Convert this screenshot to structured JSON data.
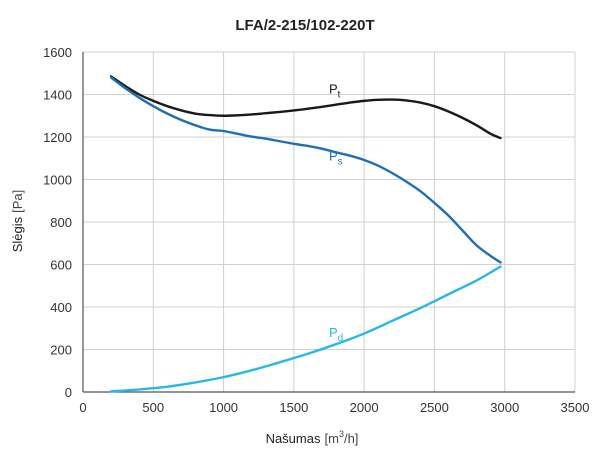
{
  "chart_data": {
    "type": "line",
    "title": "LFA/2-215/102-220T",
    "xlabel": "Našumas",
    "xlabel_unit_pre": "[m",
    "xlabel_unit_sup": "3",
    "xlabel_unit_post": "/h]",
    "ylabel": "Slėgis",
    "ylabel_unit": "[Pa]",
    "xlim": [
      0,
      3500
    ],
    "ylim": [
      0,
      1600
    ],
    "xticks": [
      0,
      500,
      1000,
      1500,
      2000,
      2500,
      3000,
      3500
    ],
    "yticks": [
      0,
      200,
      400,
      600,
      800,
      1000,
      1200,
      1400,
      1600
    ],
    "grid": true,
    "series": [
      {
        "name": "Pt",
        "label_main": "P",
        "label_sub": "t",
        "color": "#1a1a1a",
        "x": [
          200,
          300,
          400,
          500,
          600,
          700,
          800,
          900,
          1000,
          1100,
          1200,
          1300,
          1400,
          1500,
          1600,
          1700,
          1800,
          1900,
          2000,
          2100,
          2200,
          2300,
          2400,
          2500,
          2600,
          2700,
          2800,
          2900,
          2970
        ],
        "values": [
          1485,
          1440,
          1400,
          1370,
          1345,
          1325,
          1310,
          1303,
          1300,
          1302,
          1306,
          1312,
          1318,
          1325,
          1333,
          1342,
          1352,
          1362,
          1370,
          1375,
          1376,
          1372,
          1362,
          1345,
          1320,
          1290,
          1255,
          1215,
          1195
        ]
      },
      {
        "name": "Ps",
        "label_main": "P",
        "label_sub": "s",
        "color": "#1f6fb5",
        "x": [
          200,
          300,
          400,
          500,
          600,
          700,
          800,
          900,
          1000,
          1100,
          1200,
          1300,
          1400,
          1500,
          1600,
          1700,
          1800,
          1900,
          2000,
          2100,
          2200,
          2300,
          2400,
          2500,
          2600,
          2700,
          2800,
          2900,
          2970
        ],
        "values": [
          1480,
          1430,
          1385,
          1345,
          1310,
          1280,
          1255,
          1235,
          1228,
          1215,
          1202,
          1192,
          1180,
          1168,
          1158,
          1145,
          1128,
          1112,
          1092,
          1065,
          1030,
          990,
          945,
          890,
          830,
          760,
          690,
          640,
          610
        ]
      },
      {
        "name": "Pd",
        "label_main": "P",
        "label_sub": "d",
        "color": "#29b6e8",
        "x": [
          200,
          400,
          600,
          800,
          1000,
          1200,
          1400,
          1600,
          1800,
          2000,
          2200,
          2400,
          2600,
          2800,
          2970
        ],
        "values": [
          3,
          12,
          25,
          45,
          70,
          102,
          140,
          180,
          225,
          275,
          335,
          395,
          460,
          525,
          590
        ]
      }
    ]
  }
}
